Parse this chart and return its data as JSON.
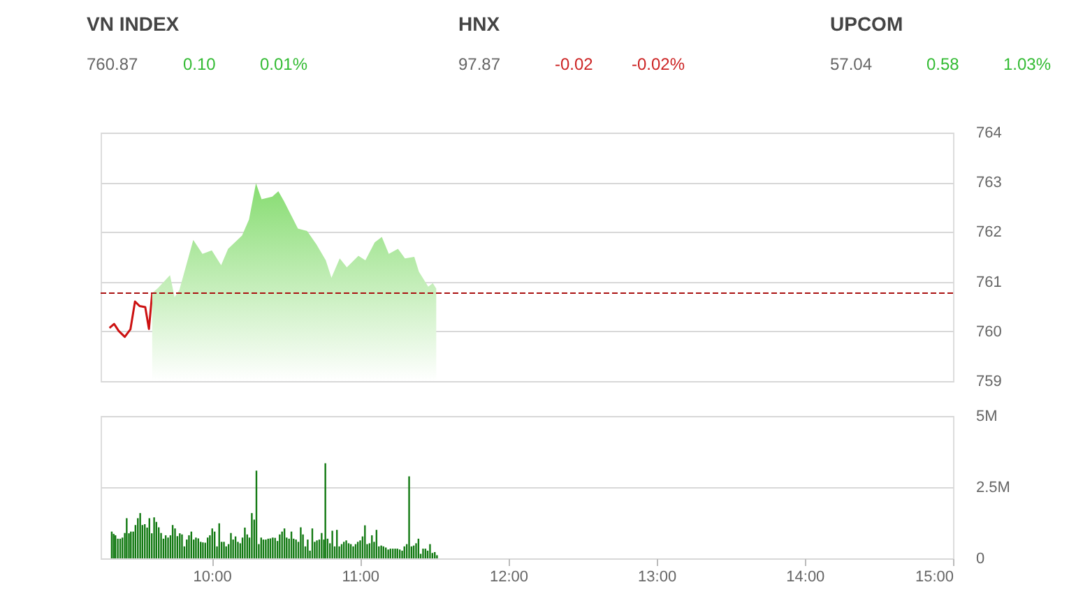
{
  "chart_data": [
    {
      "type": "other",
      "annotations": [
        "VN INDEX",
        "760.87",
        "0.10",
        "0.01%",
        "HNX",
        "97.87",
        "-0.02",
        "-0.02%",
        "UPCOM",
        "57.04",
        "0.58",
        "1.03%"
      ],
      "colors": [
        "#444444",
        "#666666",
        "#33bb33",
        "#33bb33",
        "#444444",
        "#666666",
        "#cc2222",
        "#cc2222",
        "#444444",
        "#666666",
        "#33bb33",
        "#33bb33"
      ]
    },
    {
      "type": "line",
      "series": [
        {
          "type": "line",
          "color": "#cc1111",
          "x": [
            9.31,
            9.341,
            9.372,
            9.413,
            9.451,
            9.482,
            9.513,
            9.551,
            9.576,
            9.598
          ],
          "values": [
            760.07,
            760.15,
            760.01,
            759.89,
            760.04,
            760.6,
            760.51,
            760.49,
            760.05,
            760.77
          ]
        },
        {
          "type": "area",
          "color": "#86dc70",
          "x": [
            9.598,
            9.639,
            9.718,
            9.749,
            9.781,
            9.875,
            9.937,
            10.0,
            10.063,
            10.11,
            10.204,
            10.251,
            10.298,
            10.336,
            10.408,
            10.449,
            10.487,
            10.581,
            10.643,
            10.706,
            10.769,
            10.807,
            10.863,
            10.911,
            10.989,
            11.036,
            11.099,
            11.147,
            11.194,
            11.256,
            11.303,
            11.366,
            11.397,
            11.46,
            11.491,
            11.514
          ],
          "values": [
            760.77,
            760.88,
            761.13,
            760.69,
            760.83,
            761.84,
            761.56,
            761.63,
            761.33,
            761.66,
            761.93,
            762.25,
            762.98,
            762.66,
            762.71,
            762.82,
            762.62,
            762.07,
            762.02,
            761.75,
            761.43,
            761.08,
            761.47,
            761.29,
            761.52,
            761.43,
            761.79,
            761.9,
            761.56,
            761.66,
            761.47,
            761.5,
            761.2,
            760.9,
            760.97,
            760.86
          ]
        }
      ],
      "xlim": [
        9.25,
        15
      ],
      "ylim": [
        759,
        764
      ],
      "yticks": [
        759,
        760,
        761,
        762,
        763,
        764
      ],
      "grid": "y",
      "tick_labels": "y",
      "ref_lines": [
        {
          "axis": "y",
          "value": 760.77,
          "color": "#aa1111",
          "line_style": "dashed"
        }
      ]
    },
    {
      "type": "bar",
      "color": "#137a13",
      "x": [
        9.325,
        9.338,
        9.35,
        9.366,
        9.382,
        9.397,
        9.413,
        9.426,
        9.441,
        9.454,
        9.47,
        9.485,
        9.501,
        9.517,
        9.532,
        9.548,
        9.564,
        9.579,
        9.595,
        9.611,
        9.626,
        9.642,
        9.658,
        9.674,
        9.689,
        9.705,
        9.721,
        9.736,
        9.752,
        9.768,
        9.784,
        9.799,
        9.815,
        9.831,
        9.846,
        9.862,
        9.878,
        9.893,
        9.909,
        9.925,
        9.94,
        9.956,
        9.972,
        9.987,
        10.003,
        10.019,
        10.035,
        10.05,
        10.066,
        10.082,
        10.097,
        10.113,
        10.129,
        10.144,
        10.16,
        10.176,
        10.192,
        10.207,
        10.223,
        10.239,
        10.254,
        10.27,
        10.286,
        10.301,
        10.317,
        10.333,
        10.348,
        10.364,
        10.38,
        10.395,
        10.411,
        10.427,
        10.443,
        10.458,
        10.474,
        10.49,
        10.505,
        10.521,
        10.537,
        10.552,
        10.568,
        10.584,
        10.6,
        10.615,
        10.631,
        10.647,
        10.662,
        10.678,
        10.694,
        10.709,
        10.725,
        10.741,
        10.756,
        10.766,
        10.781,
        10.797,
        10.813,
        10.829,
        10.844,
        10.86,
        10.876,
        10.891,
        10.907,
        10.923,
        10.938,
        10.954,
        10.97,
        10.985,
        11.001,
        11.017,
        11.033,
        11.048,
        11.064,
        11.08,
        11.095,
        11.111,
        11.127,
        11.143,
        11.158,
        11.174,
        11.19,
        11.205,
        11.221,
        11.237,
        11.252,
        11.268,
        11.284,
        11.299,
        11.315,
        11.331,
        11.347,
        11.362,
        11.378,
        11.394,
        11.409,
        11.425,
        11.441,
        11.456,
        11.472,
        11.488,
        11.504,
        11.519
      ],
      "values": [
        940000,
        860000,
        810000,
        690000,
        690000,
        730000,
        890000,
        1410000,
        880000,
        940000,
        940000,
        1170000,
        1410000,
        1590000,
        1170000,
        1200000,
        1080000,
        1410000,
        880000,
        1440000,
        1280000,
        1090000,
        890000,
        690000,
        810000,
        730000,
        810000,
        1170000,
        1050000,
        780000,
        880000,
        840000,
        420000,
        660000,
        810000,
        940000,
        660000,
        730000,
        700000,
        580000,
        560000,
        550000,
        730000,
        810000,
        1050000,
        940000,
        420000,
        1230000,
        580000,
        580000,
        420000,
        500000,
        890000,
        660000,
        770000,
        580000,
        530000,
        730000,
        1080000,
        840000,
        730000,
        1590000,
        1360000,
        3080000,
        500000,
        730000,
        660000,
        660000,
        690000,
        700000,
        730000,
        720000,
        610000,
        840000,
        940000,
        1050000,
        730000,
        690000,
        940000,
        690000,
        660000,
        580000,
        1090000,
        840000,
        420000,
        660000,
        270000,
        1050000,
        580000,
        630000,
        660000,
        890000,
        660000,
        3340000,
        690000,
        530000,
        970000,
        420000,
        1000000,
        420000,
        500000,
        580000,
        630000,
        530000,
        500000,
        420000,
        500000,
        580000,
        630000,
        770000,
        1160000,
        500000,
        530000,
        810000,
        580000,
        1000000,
        420000,
        450000,
        420000,
        380000,
        310000,
        340000,
        340000,
        340000,
        340000,
        310000,
        270000,
        420000,
        500000,
        2880000,
        420000,
        450000,
        530000,
        690000,
        160000,
        340000,
        340000,
        270000,
        500000,
        190000,
        220000,
        110000
      ],
      "xlim": [
        9.25,
        15
      ],
      "xticks": [
        {
          "value": 10,
          "label": "10:00"
        },
        {
          "value": 11,
          "label": "11:00"
        },
        {
          "value": 12,
          "label": "12:00"
        },
        {
          "value": 13,
          "label": "13:00"
        },
        {
          "value": 14,
          "label": "14:00"
        },
        {
          "value": 15,
          "label": "15:00"
        }
      ],
      "ylim": [
        0,
        5000000
      ],
      "yticks": [
        {
          "value": 0,
          "label": "0"
        },
        {
          "value": 2500000,
          "label": "2.5M"
        },
        {
          "value": 5000000,
          "label": "5M"
        }
      ],
      "grid": "y"
    }
  ]
}
